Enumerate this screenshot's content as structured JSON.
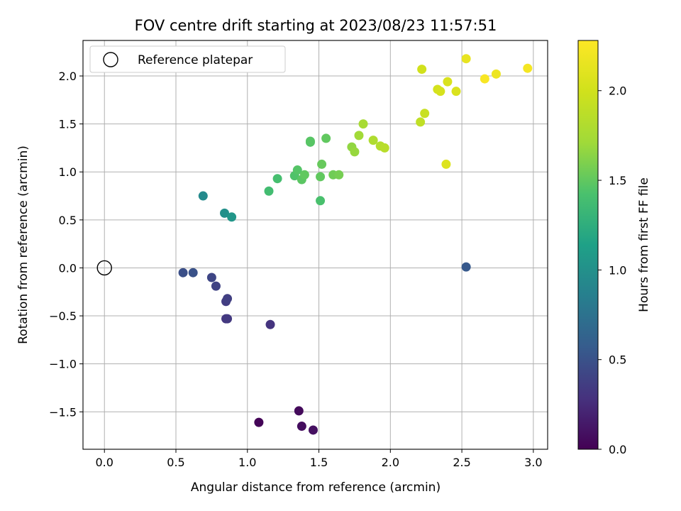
{
  "chart_data": {
    "type": "scatter",
    "title": "FOV centre drift starting at 2023/08/23 11:57:51",
    "xlabel": "Angular distance from reference (arcmin)",
    "ylabel": "Rotation from reference (arcmin)",
    "xlim": [
      -0.15,
      3.1
    ],
    "ylim": [
      -1.89,
      2.37
    ],
    "xticks": [
      0.0,
      0.5,
      1.0,
      1.5,
      2.0,
      2.5,
      3.0
    ],
    "xtick_labels": [
      "0.0",
      "0.5",
      "1.0",
      "1.5",
      "2.0",
      "2.5",
      "3.0"
    ],
    "yticks": [
      -1.5,
      -1.0,
      -0.5,
      0.0,
      0.5,
      1.0,
      1.5,
      2.0
    ],
    "ytick_labels": [
      "−1.5",
      "−1.0",
      "−0.5",
      "0.0",
      "0.5",
      "1.0",
      "1.5",
      "2.0"
    ],
    "grid": true,
    "legend": {
      "placement": "top-left",
      "entries": [
        "Reference platepar"
      ]
    },
    "reference_point": {
      "x": 0.0,
      "y": 0.0
    },
    "colormap": "viridis",
    "colorbar": {
      "label": "Hours from first FF file",
      "range": [
        0.0,
        2.28
      ],
      "ticks": [
        0.0,
        0.5,
        1.0,
        1.5,
        2.0
      ],
      "tick_labels": [
        "0.0",
        "0.5",
        "1.0",
        "1.5",
        "2.0"
      ]
    },
    "points": [
      {
        "x": 1.08,
        "y": -1.61,
        "c": 0.02
      },
      {
        "x": 1.36,
        "y": -1.49,
        "c": 0.05
      },
      {
        "x": 1.38,
        "y": -1.65,
        "c": 0.07
      },
      {
        "x": 1.46,
        "y": -1.69,
        "c": 0.09
      },
      {
        "x": 1.16,
        "y": -0.59,
        "c": 0.3
      },
      {
        "x": 0.85,
        "y": -0.53,
        "c": 0.32
      },
      {
        "x": 0.86,
        "y": -0.53,
        "c": 0.33
      },
      {
        "x": 0.85,
        "y": -0.35,
        "c": 0.36
      },
      {
        "x": 0.86,
        "y": -0.32,
        "c": 0.37
      },
      {
        "x": 0.78,
        "y": -0.19,
        "c": 0.4
      },
      {
        "x": 0.75,
        "y": -0.1,
        "c": 0.42
      },
      {
        "x": 0.55,
        "y": -0.05,
        "c": 0.48
      },
      {
        "x": 0.62,
        "y": -0.05,
        "c": 0.5
      },
      {
        "x": 2.53,
        "y": 0.01,
        "c": 0.55
      },
      {
        "x": 0.69,
        "y": 0.75,
        "c": 0.95
      },
      {
        "x": 0.84,
        "y": 0.57,
        "c": 1.0
      },
      {
        "x": 0.89,
        "y": 0.53,
        "c": 1.05
      },
      {
        "x": 1.15,
        "y": 0.8,
        "c": 1.38
      },
      {
        "x": 1.21,
        "y": 0.93,
        "c": 1.4
      },
      {
        "x": 1.51,
        "y": 0.7,
        "c": 1.42
      },
      {
        "x": 1.33,
        "y": 0.96,
        "c": 1.44
      },
      {
        "x": 1.35,
        "y": 1.02,
        "c": 1.46
      },
      {
        "x": 1.38,
        "y": 0.92,
        "c": 1.48
      },
      {
        "x": 1.4,
        "y": 0.97,
        "c": 1.5
      },
      {
        "x": 1.51,
        "y": 0.95,
        "c": 1.5
      },
      {
        "x": 1.52,
        "y": 1.08,
        "c": 1.52
      },
      {
        "x": 1.44,
        "y": 1.31,
        "c": 1.46
      },
      {
        "x": 1.44,
        "y": 1.32,
        "c": 1.47
      },
      {
        "x": 1.55,
        "y": 1.35,
        "c": 1.5
      },
      {
        "x": 1.6,
        "y": 0.97,
        "c": 1.55
      },
      {
        "x": 1.64,
        "y": 0.97,
        "c": 1.57
      },
      {
        "x": 1.73,
        "y": 1.26,
        "c": 1.66
      },
      {
        "x": 1.75,
        "y": 1.21,
        "c": 1.68
      },
      {
        "x": 1.78,
        "y": 1.38,
        "c": 1.72
      },
      {
        "x": 1.81,
        "y": 1.5,
        "c": 1.76
      },
      {
        "x": 1.88,
        "y": 1.33,
        "c": 1.8
      },
      {
        "x": 1.93,
        "y": 1.27,
        "c": 1.83
      },
      {
        "x": 1.96,
        "y": 1.25,
        "c": 1.85
      },
      {
        "x": 2.21,
        "y": 1.52,
        "c": 1.9
      },
      {
        "x": 2.24,
        "y": 1.61,
        "c": 1.95
      },
      {
        "x": 2.22,
        "y": 2.07,
        "c": 2.0
      },
      {
        "x": 2.33,
        "y": 1.86,
        "c": 2.02
      },
      {
        "x": 2.35,
        "y": 1.84,
        "c": 2.03
      },
      {
        "x": 2.4,
        "y": 1.94,
        "c": 2.05
      },
      {
        "x": 2.46,
        "y": 1.84,
        "c": 2.06
      },
      {
        "x": 2.39,
        "y": 1.08,
        "c": 2.08
      },
      {
        "x": 2.53,
        "y": 2.18,
        "c": 2.15
      },
      {
        "x": 2.66,
        "y": 1.97,
        "c": 2.25
      },
      {
        "x": 2.74,
        "y": 2.02,
        "c": 2.18
      },
      {
        "x": 2.96,
        "y": 2.08,
        "c": 2.22
      }
    ]
  }
}
